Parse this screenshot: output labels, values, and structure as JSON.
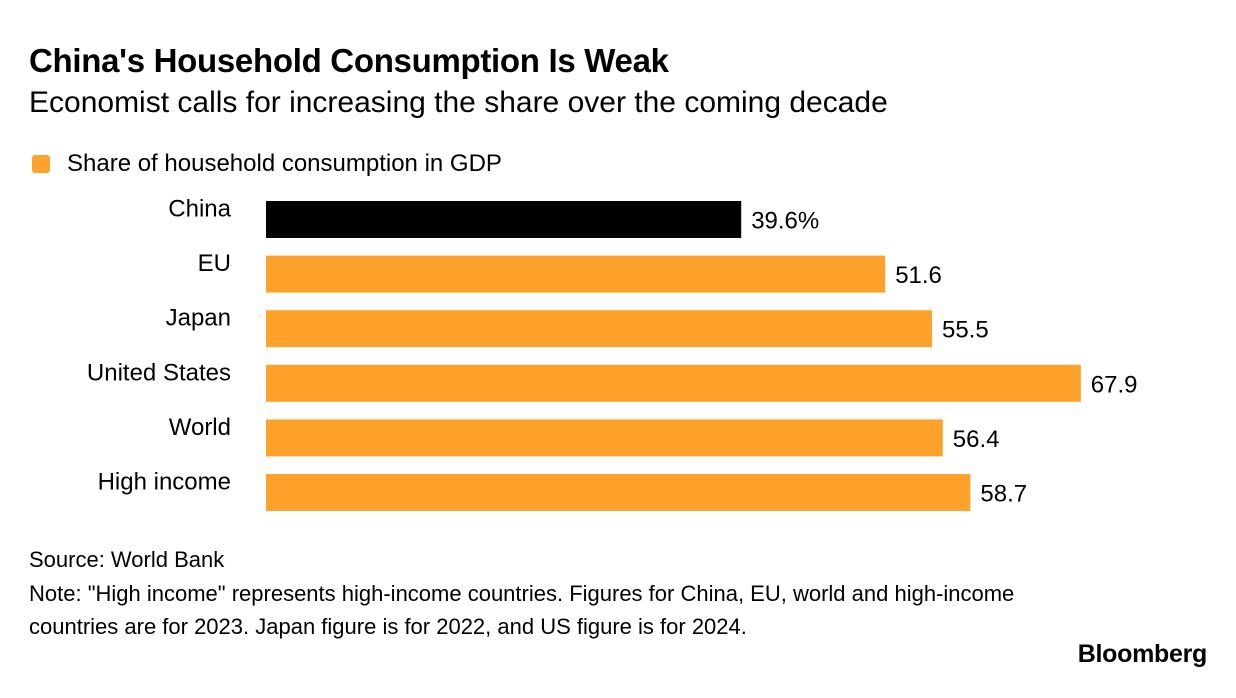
{
  "title": "China's Household Consumption Is Weak",
  "subtitle": "Economist calls for increasing the share over the coming decade",
  "colors": {
    "highlight": "#000000",
    "default": "#FFA22B"
  },
  "chart_data": {
    "type": "bar",
    "orientation": "horizontal",
    "categories": [
      "China",
      "EU",
      "Japan",
      "United States",
      "World",
      "High income"
    ],
    "series": [
      {
        "name": "Share of household consumption in GDP",
        "values": [
          39.6,
          51.6,
          55.5,
          67.9,
          56.4,
          58.7
        ]
      }
    ],
    "value_labels": [
      "39.6%",
      "51.6",
      "55.5",
      "67.9",
      "56.4",
      "58.7"
    ],
    "highlighted_category": "China",
    "unit": "%",
    "grid": false,
    "legend_position": "top-left",
    "xlim": [
      0,
      70
    ]
  },
  "footer": {
    "source": "Source: World Bank",
    "note": "Note: \"High income\" represents high-income countries. Figures for China, EU, world and high-income countries are for 2023. Japan figure is for 2022, and US figure is for 2024."
  },
  "branding": "Bloomberg"
}
